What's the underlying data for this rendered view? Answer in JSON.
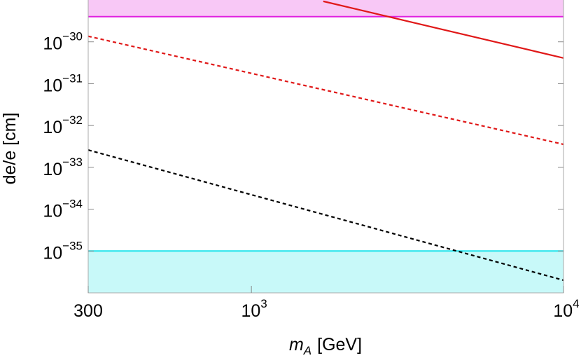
{
  "chart_data": {
    "type": "line",
    "xlabel": {
      "symbol": "m",
      "subscript": "A",
      "unit": "[GeV]"
    },
    "ylabel": "de/e [cm]",
    "xscale": "log",
    "yscale": "log",
    "xlim": [
      300,
      10000
    ],
    "ylim": [
      1e-36,
      1e-29
    ],
    "xticks": [
      300,
      {
        "value": 1000,
        "label": [
          "10",
          "3"
        ]
      },
      {
        "value": 10000,
        "label": [
          "10",
          "4"
        ]
      }
    ],
    "yticks": [
      {
        "value": 1e-30,
        "label": [
          "10",
          "−30"
        ]
      },
      {
        "value": 1e-31,
        "label": [
          "10",
          "−31"
        ]
      },
      {
        "value": 1e-32,
        "label": [
          "10",
          "−32"
        ]
      },
      {
        "value": 1e-33,
        "label": [
          "10",
          "−33"
        ]
      },
      {
        "value": 1e-34,
        "label": [
          "10",
          "−34"
        ]
      },
      {
        "value": 1e-35,
        "label": [
          "10",
          "−35"
        ]
      }
    ],
    "bands": [
      {
        "value": 4e-30,
        "side": "above",
        "color": "#e020e0",
        "fill": "#f8c8f6"
      },
      {
        "value": 1e-35,
        "side": "below",
        "color": "#20e4ec",
        "fill": "#c8f9f9"
      }
    ],
    "series": [
      {
        "color": "#e01818",
        "dash": "solid",
        "x": [
          1700,
          10000
        ],
        "values": [
          9.3e-30,
          4.1e-31
        ]
      },
      {
        "color": "#e01818",
        "dash": "dashed",
        "x": [
          300,
          10000
        ],
        "values": [
          1.36e-30,
          3.55e-33
        ]
      },
      {
        "color": "#000000",
        "dash": "dashed",
        "x": [
          300,
          10000
        ],
        "values": [
          2.6e-33,
          2e-36
        ]
      }
    ]
  }
}
